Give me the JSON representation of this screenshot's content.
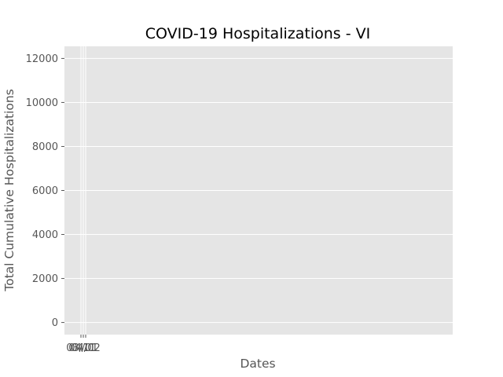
{
  "chart_data": {
    "type": "line",
    "title": "COVID-19 Hospitalizations - VI",
    "xlabel": "Dates",
    "ylabel": "Total Cumulative Hospitalizations",
    "x_tick_labels": [
      "03/11",
      "04/01",
      "04/02"
    ],
    "y_ticks": [
      0,
      2000,
      4000,
      6000,
      8000,
      10000,
      12000
    ],
    "ylim": [
      -550,
      12550
    ],
    "grid": true,
    "series": [
      {
        "x": [
          "03/11",
          "04/01",
          "04/02"
        ],
        "values": [
          null,
          null,
          null
        ]
      }
    ],
    "colors": {
      "plot_background": "#e5e5e5",
      "grid": "#ffffff",
      "tick": "#555555"
    }
  }
}
